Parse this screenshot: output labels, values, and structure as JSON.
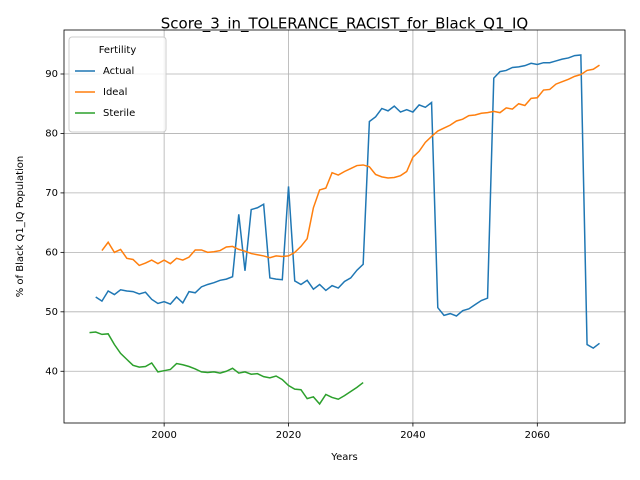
{
  "chart_data": {
    "type": "line",
    "title": "Score_3_in_TOLERANCE_RACIST_for_Black_Q1_IQ",
    "x_label": "Years",
    "y_label": "% of Black Q1_IQ Population",
    "legend_title": "Fertility",
    "legend": "upper left",
    "grid": true,
    "xlim": [
      1983.9,
      2074.1
    ],
    "ylim": [
      31.3,
      97.4
    ],
    "xticks": [
      2000,
      2020,
      2040,
      2060
    ],
    "yticks": [
      40,
      50,
      60,
      70,
      80,
      90
    ],
    "x": [
      1988,
      1989,
      1990,
      1991,
      1992,
      1993,
      1994,
      1995,
      1996,
      1997,
      1998,
      1999,
      2000,
      2001,
      2002,
      2003,
      2004,
      2005,
      2006,
      2007,
      2008,
      2009,
      2010,
      2011,
      2012,
      2013,
      2014,
      2015,
      2016,
      2017,
      2018,
      2019,
      2020,
      2021,
      2022,
      2023,
      2024,
      2025,
      2026,
      2027,
      2028,
      2029,
      2030,
      2031,
      2032,
      2033,
      2034,
      2035,
      2036,
      2037,
      2038,
      2039,
      2040,
      2041,
      2042,
      2043,
      2044,
      2045,
      2046,
      2047,
      2048,
      2049,
      2050,
      2051,
      2052,
      2053,
      2054,
      2055,
      2056,
      2057,
      2058,
      2059,
      2060,
      2061,
      2062,
      2063,
      2064,
      2065,
      2066,
      2067,
      2068,
      2069,
      2070
    ],
    "series": [
      {
        "name": "Actual",
        "color": "#1f77b4",
        "values": [
          null,
          52.5,
          51.8,
          53.5,
          52.9,
          53.7,
          53.5,
          53.4,
          53.0,
          53.3,
          52.1,
          51.4,
          51.7,
          51.3,
          52.5,
          51.5,
          53.4,
          53.2,
          54.2,
          54.6,
          54.9,
          55.3,
          55.5,
          55.9,
          66.4,
          56.9,
          67.2,
          67.5,
          68.1,
          55.7,
          55.5,
          55.4,
          71.1,
          55.2,
          54.6,
          55.3,
          53.8,
          54.6,
          53.6,
          54.4,
          54.0,
          55.1,
          55.7,
          57.0,
          58.0,
          82.0,
          82.8,
          84.2,
          83.8,
          84.6,
          83.6,
          84.0,
          83.6,
          84.8,
          84.4,
          85.2,
          50.7,
          49.4,
          49.7,
          49.3,
          50.2,
          50.5,
          51.2,
          51.9,
          52.3,
          89.3,
          90.4,
          90.6,
          91.1,
          91.2,
          91.4,
          91.8,
          91.6,
          91.9,
          91.9,
          92.2,
          92.5,
          92.7,
          93.1,
          93.2,
          44.5,
          43.9,
          44.7
        ]
      },
      {
        "name": "Ideal",
        "color": "#ff7f0e",
        "values": [
          null,
          null,
          60.3,
          61.7,
          60.0,
          60.5,
          59.0,
          58.8,
          57.8,
          58.2,
          58.7,
          58.1,
          58.7,
          58.1,
          59.0,
          58.7,
          59.2,
          60.4,
          60.4,
          60.0,
          60.1,
          60.3,
          60.9,
          61.0,
          60.5,
          60.2,
          59.8,
          59.6,
          59.4,
          59.1,
          59.4,
          59.3,
          59.4,
          60.0,
          61.0,
          62.3,
          67.5,
          70.5,
          70.8,
          73.4,
          73.0,
          73.6,
          74.1,
          74.6,
          74.7,
          74.4,
          73.1,
          72.7,
          72.5,
          72.6,
          72.9,
          73.6,
          76.0,
          77.0,
          78.5,
          79.5,
          80.4,
          80.9,
          81.4,
          82.1,
          82.4,
          83.0,
          83.1,
          83.4,
          83.5,
          83.7,
          83.5,
          84.3,
          84.1,
          85.0,
          84.7,
          85.9,
          86.0,
          87.3,
          87.4,
          88.3,
          88.7,
          89.1,
          89.6,
          89.9,
          90.6,
          90.8,
          91.5
        ]
      },
      {
        "name": "Sterile",
        "color": "#2ca02c",
        "values": [
          46.5,
          46.6,
          46.2,
          46.3,
          44.5,
          43.0,
          42.0,
          41.0,
          40.7,
          40.8,
          41.4,
          39.9,
          40.1,
          40.3,
          41.3,
          41.1,
          40.8,
          40.4,
          39.9,
          39.8,
          39.9,
          39.7,
          40.0,
          40.5,
          39.7,
          39.9,
          39.5,
          39.6,
          39.1,
          38.9,
          39.2,
          38.6,
          37.6,
          37.0,
          36.9,
          35.4,
          35.7,
          34.5,
          36.1,
          35.6,
          35.3,
          35.9,
          36.6,
          37.3,
          38.1,
          null,
          null,
          null,
          null,
          null,
          null,
          null,
          null,
          null,
          null,
          null,
          null,
          null,
          null,
          null,
          null,
          null,
          null,
          null,
          null,
          null,
          null,
          null,
          null,
          null,
          null,
          null,
          null,
          null,
          null,
          null,
          null,
          null,
          null,
          null,
          null,
          null,
          null
        ]
      }
    ]
  }
}
